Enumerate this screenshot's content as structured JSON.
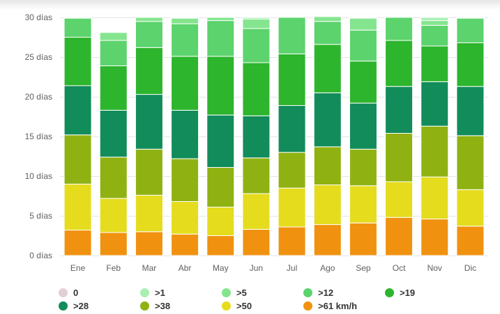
{
  "chart_data": {
    "type": "bar",
    "stacked": true,
    "title": "",
    "xlabel": "",
    "ylabel": "",
    "ylim": [
      0,
      30
    ],
    "y_ticks": [
      0,
      5,
      10,
      15,
      20,
      25,
      30
    ],
    "y_tick_labels": [
      "0 días",
      "5 días",
      "10 días",
      "15 días",
      "20 días",
      "25 días",
      "30 días"
    ],
    "grid": true,
    "legend_position": "bottom",
    "categories": [
      "Ene",
      "Feb",
      "Mar",
      "Abr",
      "May",
      "Jun",
      "Jul",
      "Ago",
      "Sep",
      "Oct",
      "Nov",
      "Dic"
    ],
    "series": [
      {
        "name": ">61 km/h",
        "color": "#f0920f",
        "values": [
          3.2,
          2.9,
          3.0,
          2.7,
          2.5,
          3.3,
          3.6,
          3.9,
          4.1,
          4.8,
          4.6,
          3.7
        ]
      },
      {
        "name": ">50",
        "color": "#e5dc1e",
        "values": [
          5.8,
          4.3,
          4.6,
          4.1,
          3.6,
          4.5,
          4.9,
          5.0,
          4.7,
          4.5,
          5.3,
          4.6
        ]
      },
      {
        "name": ">38",
        "color": "#8fb212",
        "values": [
          6.2,
          5.2,
          5.8,
          5.4,
          5.0,
          4.5,
          4.5,
          4.8,
          4.6,
          6.1,
          6.4,
          6.8
        ]
      },
      {
        "name": ">28",
        "color": "#118c5a",
        "values": [
          6.2,
          5.9,
          6.9,
          6.1,
          6.6,
          5.3,
          5.9,
          6.8,
          5.8,
          5.9,
          5.6,
          6.2
        ]
      },
      {
        "name": ">19",
        "color": "#2db52d",
        "values": [
          6.1,
          5.6,
          5.9,
          6.8,
          7.4,
          6.7,
          6.5,
          6.1,
          5.3,
          5.8,
          4.5,
          5.5
        ]
      },
      {
        "name": ">12",
        "color": "#5cd36d",
        "values": [
          2.4,
          3.2,
          3.3,
          4.1,
          4.5,
          4.3,
          4.6,
          2.9,
          3.9,
          2.9,
          2.6,
          3.1
        ]
      },
      {
        "name": ">5",
        "color": "#85e58f",
        "values": [
          0.1,
          1.0,
          0.5,
          0.7,
          0.4,
          1.2,
          0.1,
          0.6,
          1.5,
          0.1,
          0.6,
          0.1
        ]
      },
      {
        "name": ">1",
        "color": "#a9efb4",
        "values": [
          0.0,
          0.1,
          0.0,
          0.1,
          0.0,
          0.2,
          0.0,
          0.1,
          0.1,
          0.0,
          0.4,
          0.0
        ]
      },
      {
        "name": "0",
        "color": "#e3cfd3",
        "values": [
          0.0,
          0.0,
          0.0,
          0.0,
          0.0,
          0.0,
          0.0,
          0.0,
          0.0,
          0.0,
          0.0,
          0.0
        ]
      }
    ],
    "legend": [
      {
        "label": "0",
        "color": "#e3cfd3"
      },
      {
        "label": ">1",
        "color": "#a9efb4"
      },
      {
        "label": ">5",
        "color": "#85e58f"
      },
      {
        "label": ">12",
        "color": "#5cd36d"
      },
      {
        "label": ">19",
        "color": "#2db52d"
      },
      {
        "label": ">28",
        "color": "#118c5a"
      },
      {
        "label": ">38",
        "color": "#8fb212"
      },
      {
        "label": ">50",
        "color": "#e5dc1e"
      },
      {
        "label": ">61 km/h",
        "color": "#f0920f"
      }
    ]
  }
}
